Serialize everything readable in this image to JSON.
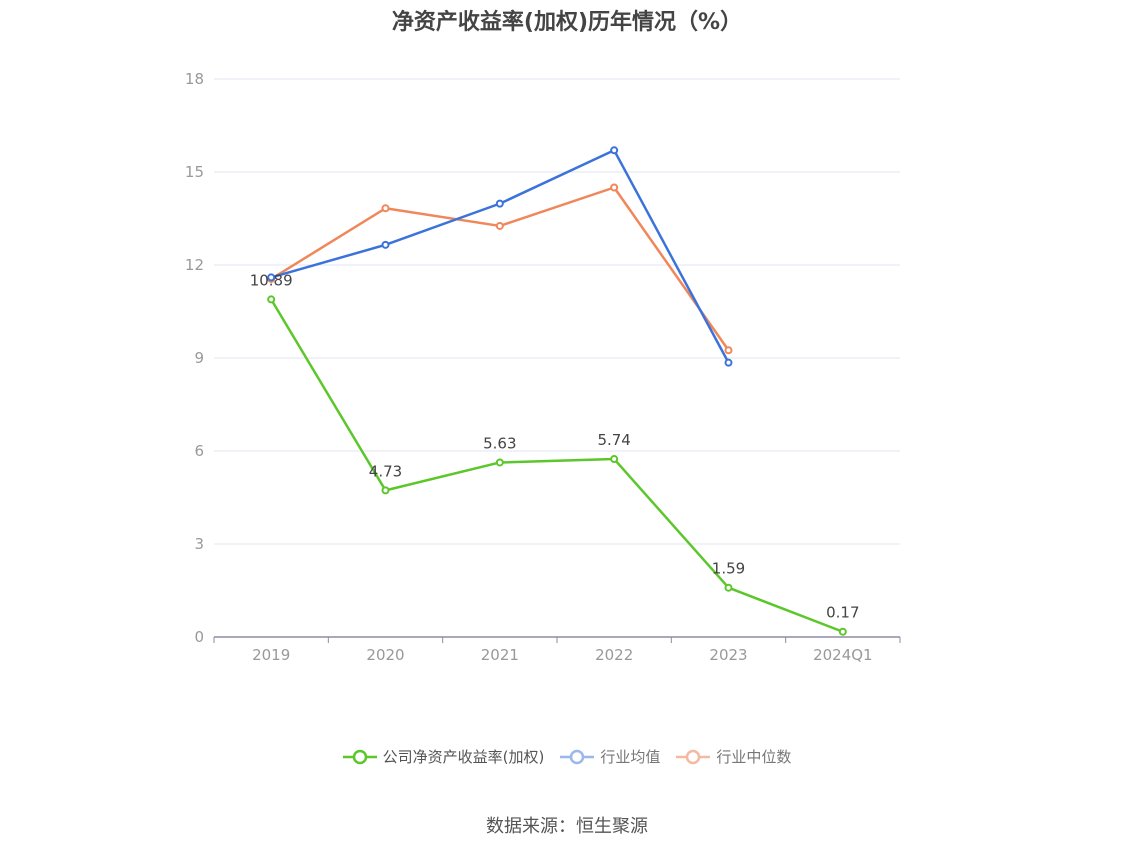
{
  "chart_data": {
    "type": "line",
    "title": "净资产收益率(加权)历年情况（%）",
    "categories": [
      "2019",
      "2020",
      "2021",
      "2022",
      "2023",
      "2024Q1"
    ],
    "ylim": [
      0,
      18
    ],
    "yticks": [
      0,
      3,
      6,
      9,
      12,
      15,
      18
    ],
    "grid": true,
    "legend_position": "bottom",
    "series": [
      {
        "name": "公司净资产收益率(加权)",
        "color": "#5cc72a",
        "values": [
          10.89,
          4.73,
          5.63,
          5.74,
          1.59,
          0.17
        ],
        "labels": [
          "10.89",
          "4.73",
          "5.63",
          "5.74",
          "1.59",
          "0.17"
        ]
      },
      {
        "name": "行业均值",
        "color": "#3b73db",
        "values": [
          11.6,
          12.65,
          13.98,
          15.7,
          8.85,
          null
        ]
      },
      {
        "name": "行业中位数",
        "color": "#f0875a",
        "values": [
          11.55,
          13.83,
          13.26,
          14.5,
          9.25,
          null
        ]
      }
    ]
  },
  "legend": {
    "items": [
      {
        "label": "公司净资产收益率(加权)",
        "color": "#5cc72a"
      },
      {
        "label": "行业均值",
        "color": "#9bb8ec"
      },
      {
        "label": "行业中位数",
        "color": "#f5b9a2"
      }
    ]
  },
  "source": "数据来源：恒生聚源"
}
